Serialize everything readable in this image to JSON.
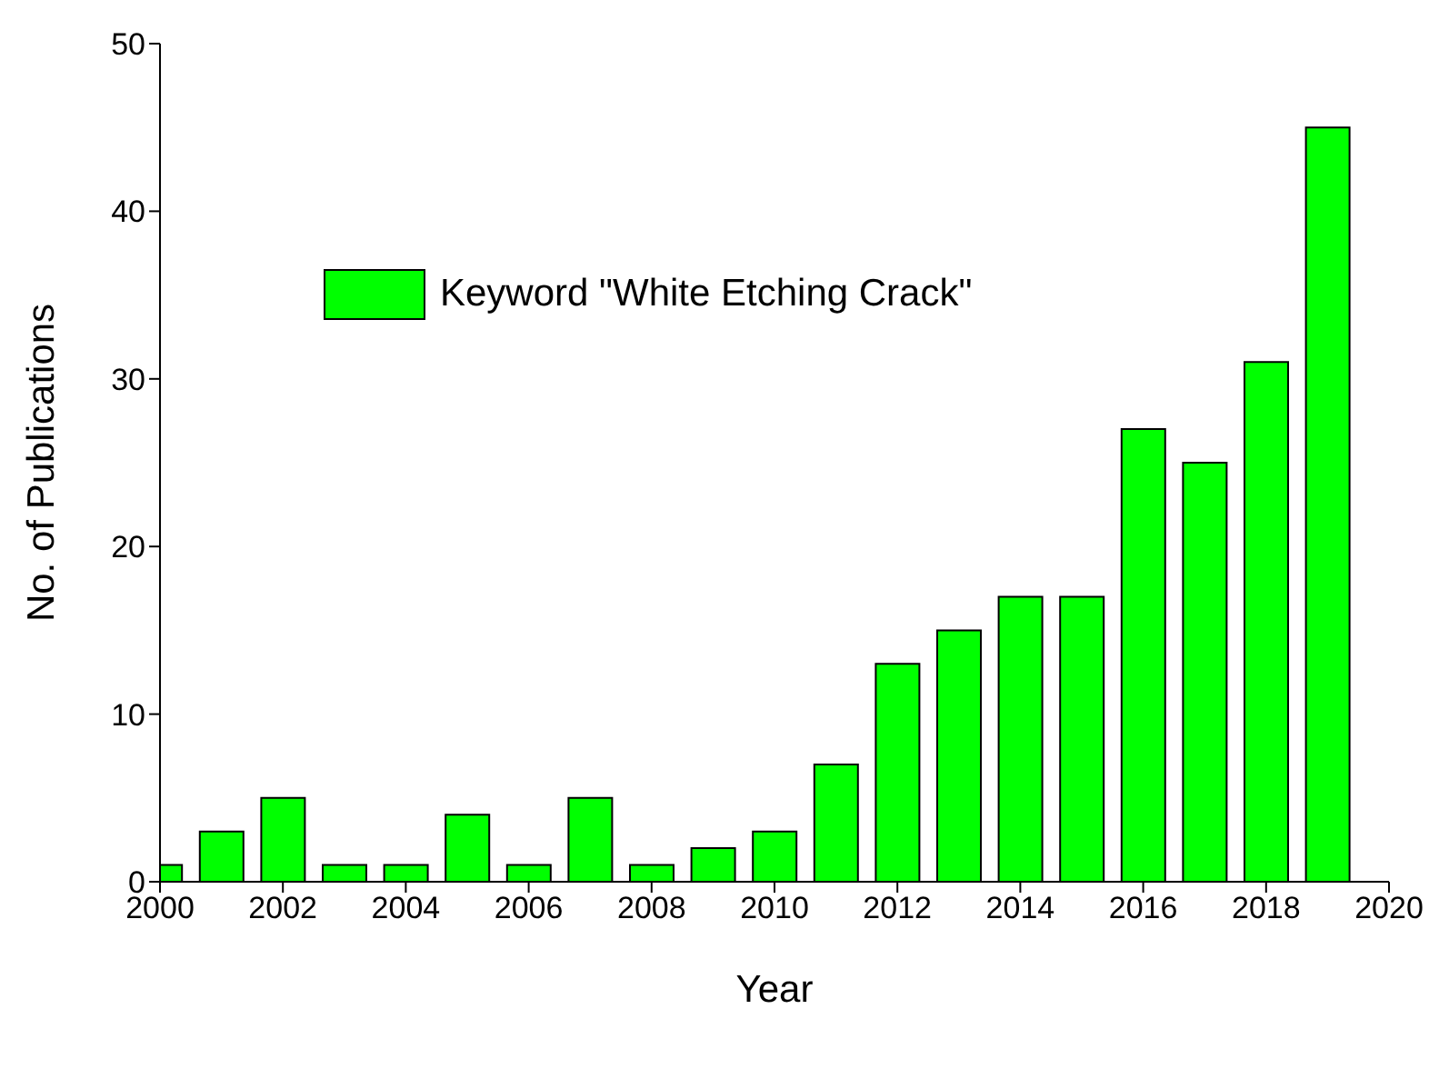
{
  "chart_data": {
    "type": "bar",
    "xlabel": "Year",
    "ylabel": "No. of Publications",
    "x": [
      2000,
      2001,
      2002,
      2003,
      2004,
      2005,
      2006,
      2007,
      2008,
      2009,
      2010,
      2011,
      2012,
      2013,
      2014,
      2015,
      2016,
      2017,
      2018,
      2019
    ],
    "series": [
      {
        "name": "Keyword \"White Etching Crack\"",
        "color": "#00ff00",
        "values": [
          1,
          3,
          5,
          1,
          1,
          4,
          1,
          5,
          1,
          2,
          3,
          7,
          13,
          15,
          17,
          17,
          27,
          25,
          31,
          45
        ]
      }
    ],
    "xlim": [
      2000,
      2020
    ],
    "xticks": [
      2000,
      2002,
      2004,
      2006,
      2008,
      2010,
      2012,
      2014,
      2016,
      2018,
      2020
    ],
    "ylim": [
      0,
      50
    ],
    "yticks": [
      0,
      10,
      20,
      30,
      40,
      50
    ],
    "grid": false,
    "legend": "top left"
  }
}
